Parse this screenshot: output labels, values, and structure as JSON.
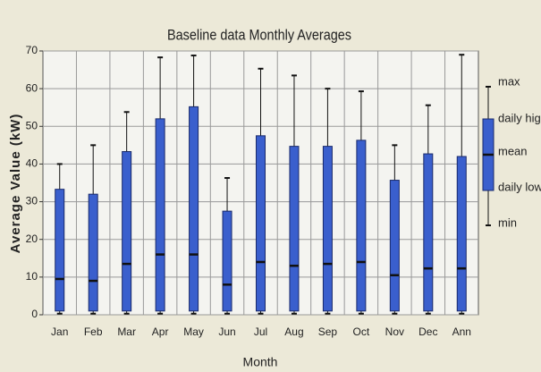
{
  "chart_data": {
    "type": "box",
    "title": "Baseline data Monthly Averages",
    "x_label": "Month",
    "y_label": "Average Value (kW)",
    "categories": [
      "Jan",
      "Feb",
      "Mar",
      "Apr",
      "May",
      "Jun",
      "Jul",
      "Aug",
      "Sep",
      "Oct",
      "Nov",
      "Dec",
      "Ann"
    ],
    "min": [
      0.3,
      0.3,
      0.3,
      0.3,
      0.3,
      0.3,
      0.3,
      0.3,
      0.3,
      0.3,
      0.3,
      0.3,
      0.3
    ],
    "daily_low": [
      1,
      1,
      1,
      1,
      1,
      1,
      1,
      1,
      1,
      1,
      1,
      1,
      1
    ],
    "mean": [
      9.5,
      9,
      13.5,
      16,
      16,
      8,
      14,
      13,
      13.5,
      14,
      10.5,
      12.3,
      12.3
    ],
    "daily_high": [
      33.3,
      32,
      43.3,
      52,
      55.2,
      27.5,
      47.5,
      44.7,
      44.7,
      46.3,
      35.7,
      42.7,
      42
    ],
    "max": [
      40,
      45,
      53.8,
      68.3,
      68.8,
      36.3,
      65.3,
      63.5,
      60,
      59.3,
      45,
      55.6,
      69
    ],
    "legend": [
      "max",
      "daily high",
      "mean",
      "daily low",
      "min"
    ],
    "color": "#3a5fcd",
    "ylim": [
      0,
      70
    ],
    "yticks": [
      0,
      10,
      20,
      30,
      40,
      50,
      60,
      70
    ],
    "grid": true
  }
}
